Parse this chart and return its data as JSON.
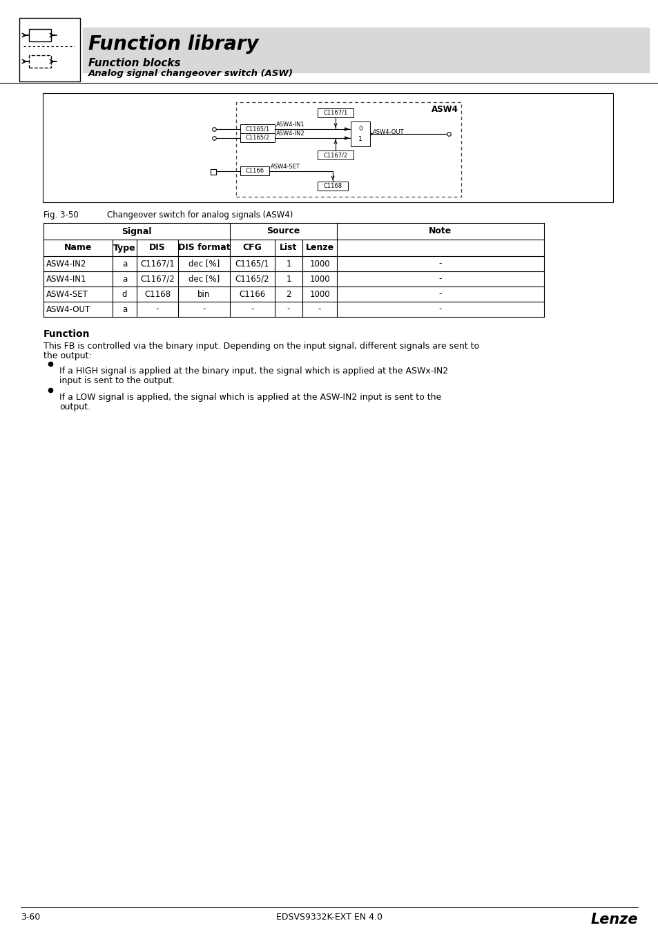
{
  "page_bg": "#ffffff",
  "header_bg": "#d8d8d8",
  "header_title": "Function library",
  "header_sub1": "Function blocks",
  "header_sub2": "Analog signal changeover switch (ASW)",
  "fig_label": "Fig. 3-50",
  "fig_caption": "Changeover switch for analog signals (ASW4)",
  "table_rows": [
    [
      "ASW4-IN2",
      "a",
      "C1167/1",
      "dec [%]",
      "C1165/1",
      "1",
      "1000",
      "-"
    ],
    [
      "ASW4-IN1",
      "a",
      "C1167/2",
      "dec [%]",
      "C1165/2",
      "1",
      "1000",
      "-"
    ],
    [
      "ASW4-SET",
      "d",
      "C1168",
      "bin",
      "C1166",
      "2",
      "1000",
      "-"
    ],
    [
      "ASW4-OUT",
      "a",
      "-",
      "-",
      "-",
      "-",
      "-",
      "-"
    ]
  ],
  "function_title": "Function",
  "function_text1": "This FB is controlled via the binary input. Depending on the input signal, different signals are sent to",
  "function_text2": "the output:",
  "bullet1_line1": "If a HIGH signal is applied at the binary input, the signal which is applied at the ASWx-IN2",
  "bullet1_line2": "input is sent to the output.",
  "bullet2_line1": "If a LOW signal is applied, the signal which is applied at the ASW-IN2 input is sent to the",
  "bullet2_line2": "output.",
  "footer_left": "3-60",
  "footer_center": "EDSVS9332K-EXT EN 4.0",
  "footer_right": "Lenze"
}
